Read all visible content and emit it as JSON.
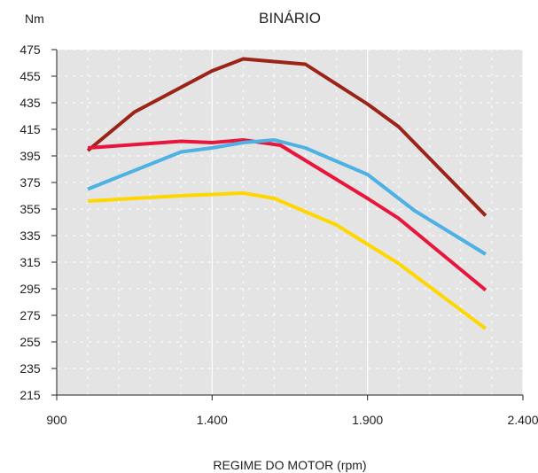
{
  "chart_data": {
    "type": "line",
    "title": "BINÁRIO",
    "ylabel": "Nm",
    "xlabel": "REGIME DO MOTOR (rpm)",
    "xlim": [
      900,
      2400
    ],
    "ylim": [
      215,
      475
    ],
    "x_ticks": [
      {
        "value": 900,
        "label": "900"
      },
      {
        "value": 1400,
        "label": "1.400"
      },
      {
        "value": 1900,
        "label": "1.900"
      },
      {
        "value": 2400,
        "label": "2.400"
      }
    ],
    "y_ticks": [
      {
        "value": 475,
        "label": "475"
      },
      {
        "value": 455,
        "label": "455"
      },
      {
        "value": 435,
        "label": "435"
      },
      {
        "value": 415,
        "label": "415"
      },
      {
        "value": 395,
        "label": "395"
      },
      {
        "value": 375,
        "label": "375"
      },
      {
        "value": 355,
        "label": "355"
      },
      {
        "value": 335,
        "label": "335"
      },
      {
        "value": 315,
        "label": "315"
      },
      {
        "value": 295,
        "label": "295"
      },
      {
        "value": 275,
        "label": "275"
      },
      {
        "value": 255,
        "label": "255"
      },
      {
        "value": 235,
        "label": "235"
      },
      {
        "value": 215,
        "label": "215"
      }
    ],
    "grid": true,
    "background_color": "#e4e4e4",
    "series": [
      {
        "color": "#9b2318",
        "points": [
          [
            1000,
            399
          ],
          [
            1150,
            428
          ],
          [
            1400,
            459
          ],
          [
            1500,
            468
          ],
          [
            1700,
            464
          ],
          [
            1900,
            434
          ],
          [
            2000,
            417
          ],
          [
            2280,
            350
          ]
        ]
      },
      {
        "color": "#e8163c",
        "points": [
          [
            1000,
            401
          ],
          [
            1300,
            406
          ],
          [
            1400,
            405
          ],
          [
            1500,
            407
          ],
          [
            1620,
            403
          ],
          [
            1900,
            363
          ],
          [
            2000,
            348
          ],
          [
            2280,
            294
          ]
        ]
      },
      {
        "color": "#4db1e4",
        "points": [
          [
            1000,
            370
          ],
          [
            1300,
            398
          ],
          [
            1400,
            401
          ],
          [
            1500,
            405
          ],
          [
            1600,
            407
          ],
          [
            1700,
            401
          ],
          [
            1900,
            381
          ],
          [
            2050,
            354
          ],
          [
            2280,
            321
          ]
        ]
      },
      {
        "color": "#ffd700",
        "points": [
          [
            1000,
            361
          ],
          [
            1300,
            365
          ],
          [
            1400,
            366
          ],
          [
            1500,
            367
          ],
          [
            1600,
            363
          ],
          [
            1800,
            343
          ],
          [
            2000,
            314
          ],
          [
            2280,
            265
          ]
        ]
      }
    ]
  }
}
